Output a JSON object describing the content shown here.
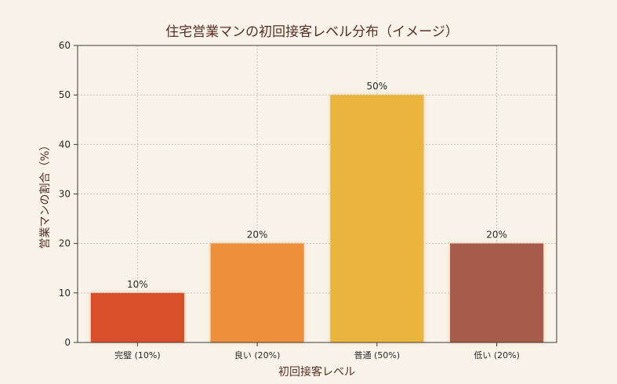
{
  "chart_data": {
    "type": "bar",
    "title": "住宅営業マンの初回接客レベル分布（イメージ）",
    "xlabel": "初回接客レベル",
    "ylabel": "営業マンの割合（%）",
    "categories": [
      "完璧 (10%)",
      "良い (20%)",
      "普通 (50%)",
      "低い (20%)"
    ],
    "values": [
      10,
      20,
      50,
      20
    ],
    "data_labels": [
      "10%",
      "20%",
      "50%",
      "20%"
    ],
    "colors": [
      "#d9502a",
      "#ef8f3a",
      "#eab53c",
      "#a55c4c"
    ],
    "ylim": [
      0,
      60
    ],
    "yticks": [
      0,
      10,
      20,
      30,
      40,
      50,
      60
    ],
    "grid": true
  }
}
